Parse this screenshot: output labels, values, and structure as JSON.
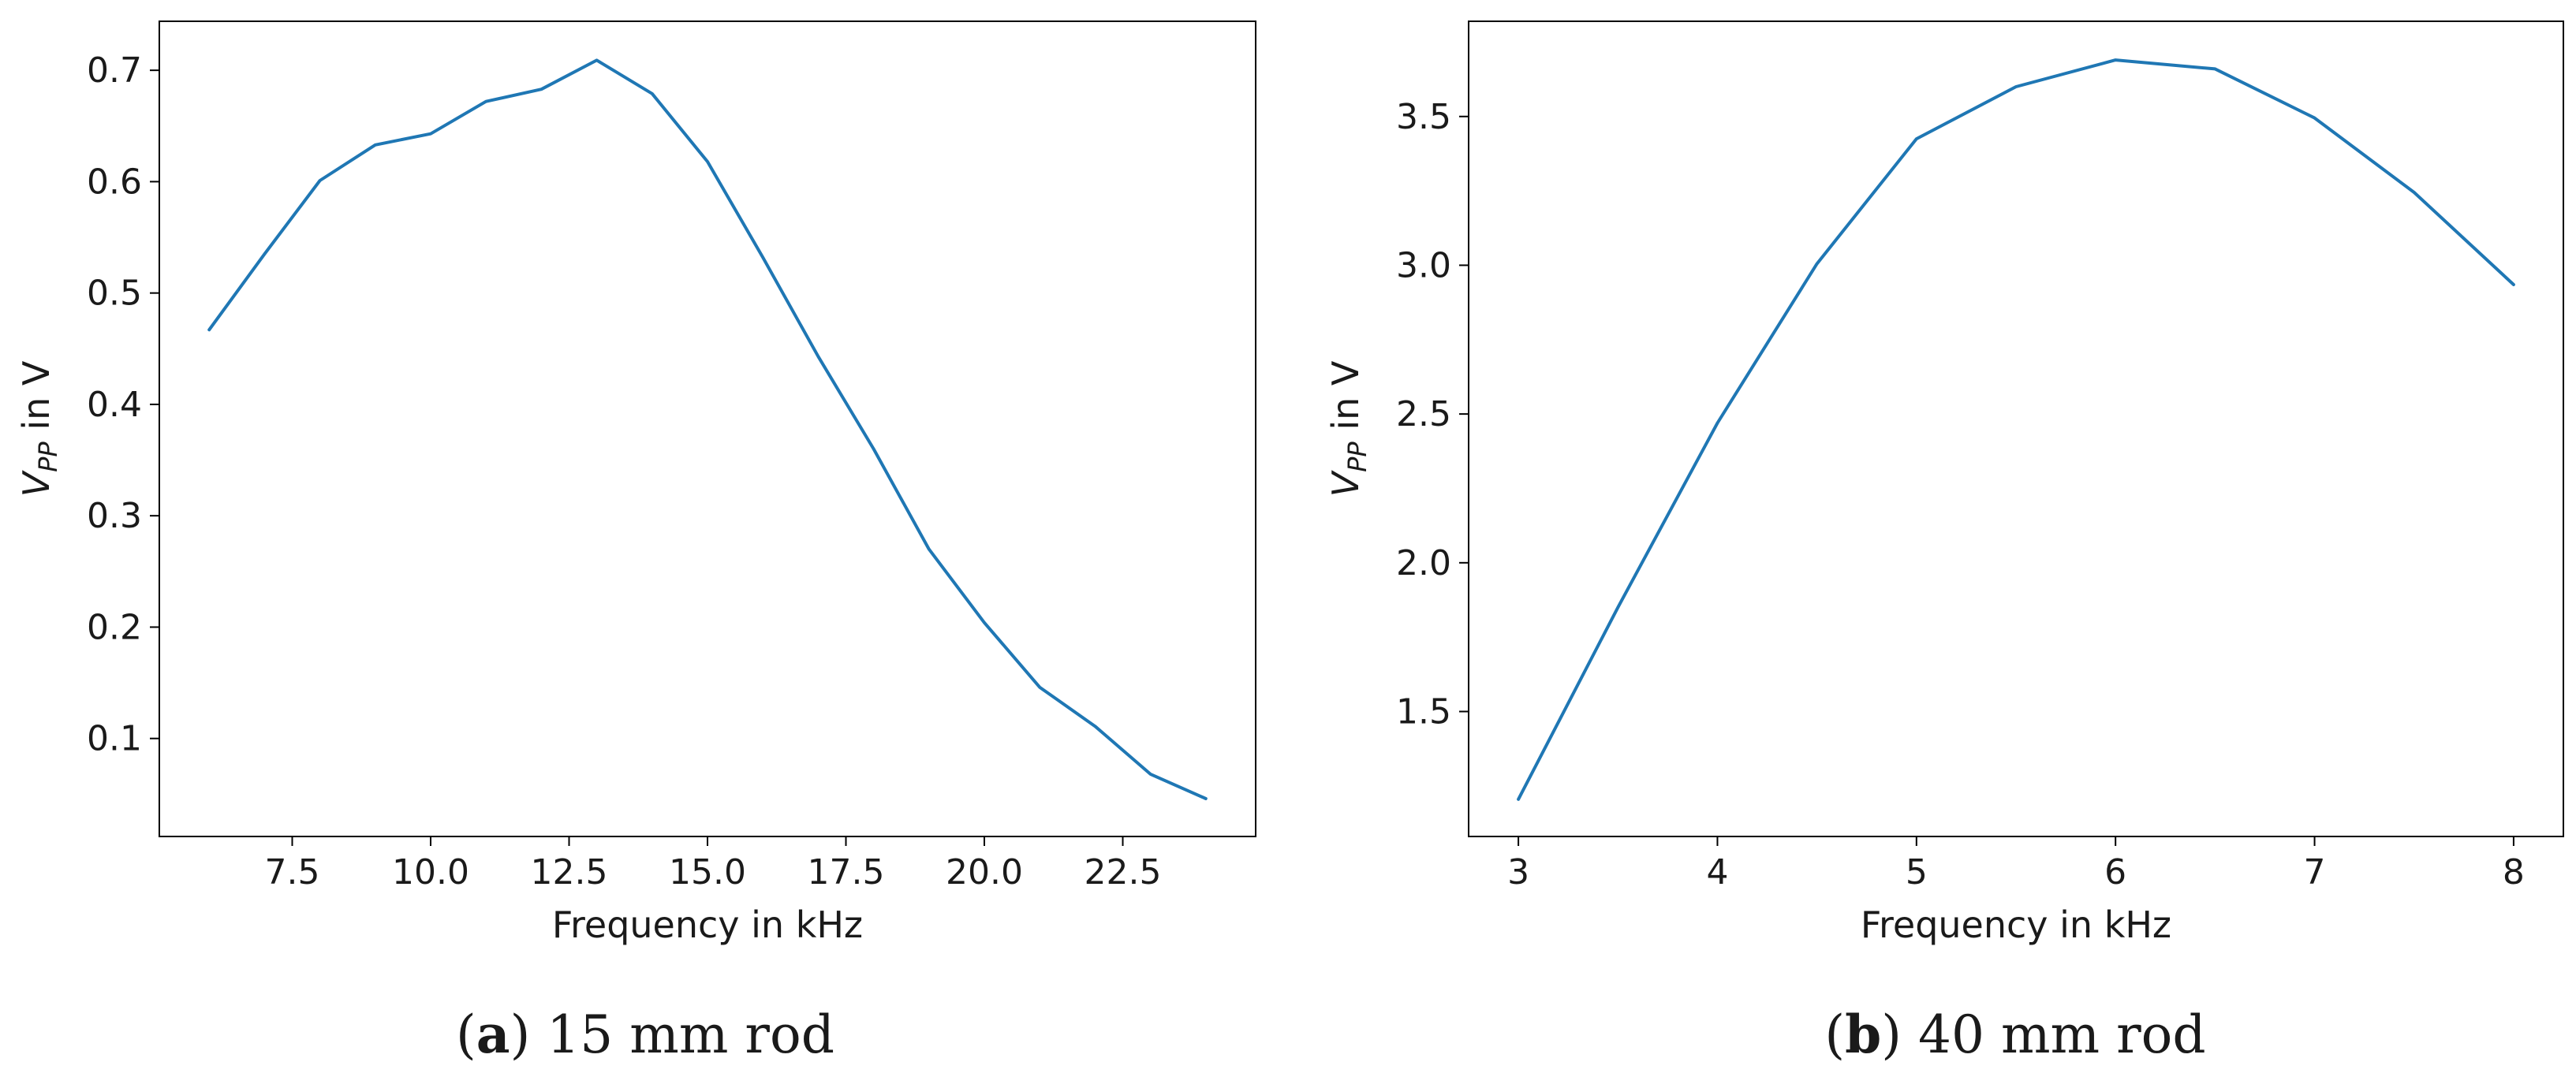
{
  "chart_data": [
    {
      "type": "line",
      "panel_label": "a",
      "caption": "15 mm rod",
      "xlabel": "Frequency in kHz",
      "ylabel_main": "V",
      "ylabel_sub": "PP",
      "ylabel_rest": " in V",
      "xlim": [
        5.1,
        24.9
      ],
      "ylim": [
        0.012,
        0.744
      ],
      "xticks": [
        7.5,
        10.0,
        12.5,
        15.0,
        17.5,
        20.0,
        22.5
      ],
      "xtick_labels": [
        "7.5",
        "10.0",
        "12.5",
        "15.0",
        "17.5",
        "20.0",
        "22.5"
      ],
      "yticks": [
        0.1,
        0.2,
        0.3,
        0.4,
        0.5,
        0.6,
        0.7
      ],
      "ytick_labels": [
        "0.1",
        "0.2",
        "0.3",
        "0.4",
        "0.5",
        "0.6",
        "0.7"
      ],
      "line_color": "#1f77b4",
      "series": [
        {
          "name": "V_PP",
          "x": [
            6,
            7,
            8,
            9,
            10,
            11,
            12,
            13,
            14,
            15,
            16,
            17,
            18,
            19,
            20,
            21,
            22,
            23,
            24
          ],
          "y": [
            0.467,
            0.535,
            0.601,
            0.633,
            0.643,
            0.672,
            0.683,
            0.709,
            0.679,
            0.618,
            0.532,
            0.443,
            0.36,
            0.27,
            0.204,
            0.146,
            0.111,
            0.068,
            0.046
          ]
        }
      ]
    },
    {
      "type": "line",
      "panel_label": "b",
      "caption": "40 mm rod",
      "xlabel": "Frequency in kHz",
      "ylabel_main": "V",
      "ylabel_sub": "PP",
      "ylabel_rest": " in V",
      "xlim": [
        2.75,
        8.25
      ],
      "ylim": [
        1.08,
        3.82
      ],
      "xticks": [
        3,
        4,
        5,
        6,
        7,
        8
      ],
      "xtick_labels": [
        "3",
        "4",
        "5",
        "6",
        "7",
        "8"
      ],
      "yticks": [
        1.5,
        2.0,
        2.5,
        3.0,
        3.5
      ],
      "ytick_labels": [
        "1.5",
        "2.0",
        "2.5",
        "3.0",
        "3.5"
      ],
      "line_color": "#1f77b4",
      "series": [
        {
          "name": "V_PP",
          "x": [
            3,
            3.5,
            4,
            4.5,
            5,
            5.5,
            6,
            6.5,
            7,
            7.5,
            8
          ],
          "y": [
            1.205,
            1.85,
            2.47,
            3.005,
            3.425,
            3.6,
            3.69,
            3.66,
            3.495,
            3.245,
            2.935
          ]
        }
      ]
    }
  ]
}
